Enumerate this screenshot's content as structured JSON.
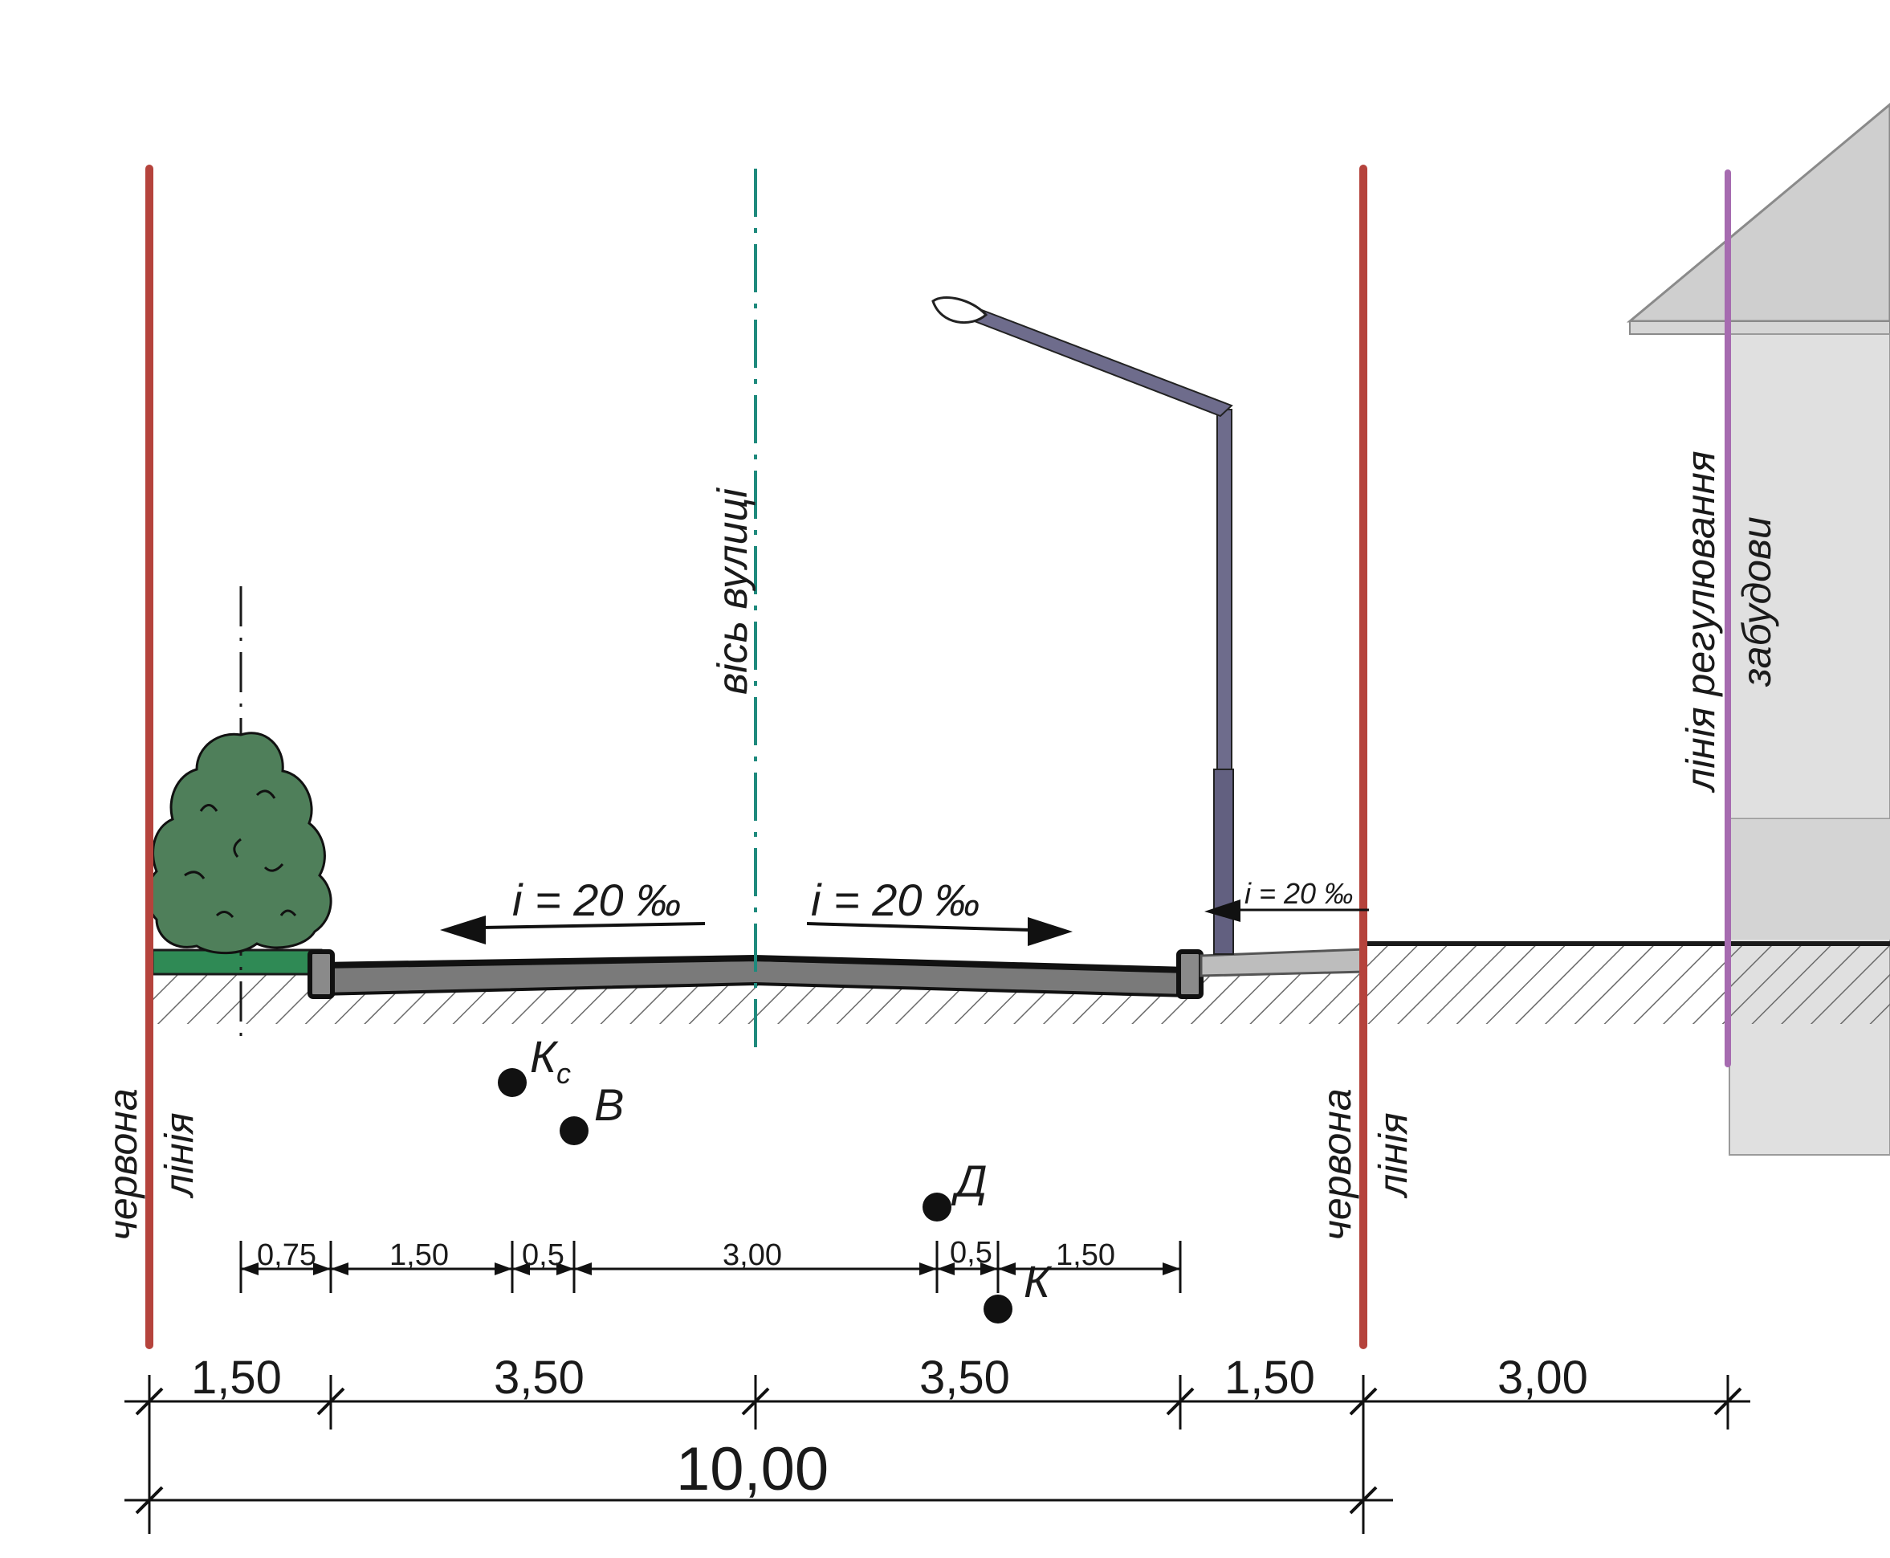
{
  "labels": {
    "street_axis": "вісь вулиці",
    "red_line_left_1": "червона",
    "red_line_left_2": "лінія",
    "red_line_right_1": "червона",
    "red_line_right_2": "лінія",
    "build_line_1": "лінія регулювання",
    "build_line_2": "забудови"
  },
  "slopes": {
    "left": "i = 20 ‰",
    "right": "i = 20 ‰",
    "sidewalk": "i = 20 ‰"
  },
  "utilities": {
    "kc_main": "К",
    "kc_sub": "с",
    "v": "В",
    "d": "Д",
    "k": "К"
  },
  "dims_small": [
    "0,75",
    "1,50",
    "0,5",
    "3,00",
    "0,5",
    "1,50"
  ],
  "dims_main": [
    "1,50",
    "3,50",
    "3,50",
    "1,50",
    "3,00"
  ],
  "dim_total": "10,00",
  "colors": {
    "red_line": "#b5433c",
    "axis": "#1f8a7d",
    "build_line": "#a66bb0",
    "tree": "#4f7f5a",
    "grass": "#2f8a55",
    "road": "#7a7a7a",
    "sidewalk": "#bdbdbd",
    "lamp": "#626080",
    "house": "#e0e0e0",
    "roof": "#cfcfcf"
  }
}
